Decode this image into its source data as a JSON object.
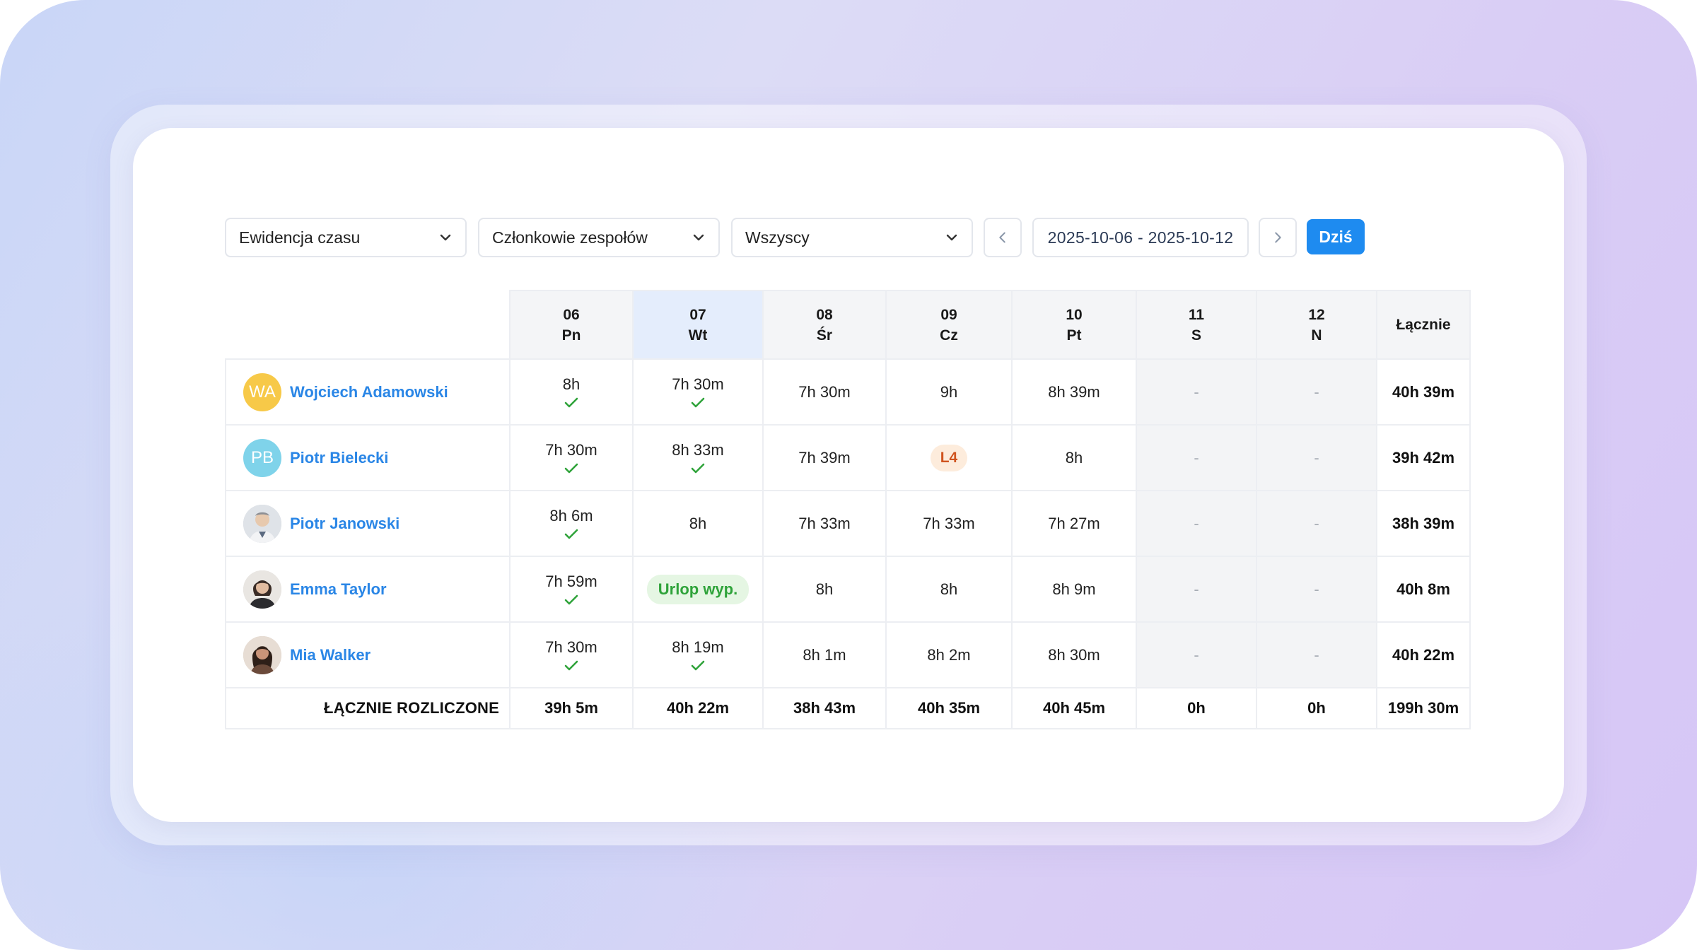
{
  "toolbar": {
    "view_select": "Ewidencja czasu",
    "members_select": "Członkowie zespołów",
    "filter_select": "Wszyscy",
    "date_range": "2025-10-06 - 2025-10-12",
    "today_label": "Dziś"
  },
  "columns": [
    {
      "day": "06",
      "dow": "Pn"
    },
    {
      "day": "07",
      "dow": "Wt"
    },
    {
      "day": "08",
      "dow": "Śr"
    },
    {
      "day": "09",
      "dow": "Cz"
    },
    {
      "day": "10",
      "dow": "Pt"
    },
    {
      "day": "11",
      "dow": "S"
    },
    {
      "day": "12",
      "dow": "N"
    }
  ],
  "total_header": "Łącznie",
  "rows": [
    {
      "initials": "WA",
      "name": "Wojciech Adamowski",
      "avatar_color": "#f7c948",
      "cells": [
        "8h",
        "7h 30m",
        "7h 30m",
        "9h",
        "8h 39m",
        "-",
        "-"
      ],
      "total": "40h 39m"
    },
    {
      "initials": "PB",
      "name": "Piotr Bielecki",
      "avatar_color": "#7fd3ea",
      "cells": [
        "7h 30m",
        "8h 33m",
        "7h 39m",
        "L4",
        "8h",
        "-",
        "-"
      ],
      "total": "39h 42m"
    },
    {
      "initials": "",
      "name": "Piotr Janowski",
      "avatar_color": "#c9ced6",
      "cells": [
        "8h 6m",
        "8h",
        "7h 33m",
        "7h 33m",
        "7h 27m",
        "-",
        "-"
      ],
      "total": "38h 39m"
    },
    {
      "initials": "",
      "name": "Emma Taylor",
      "avatar_color": "#d9d4cf",
      "cells": [
        "7h 59m",
        "Urlop wyp.",
        "8h",
        "8h",
        "8h 9m",
        "-",
        "-"
      ],
      "total": "40h 8m"
    },
    {
      "initials": "",
      "name": "Mia Walker",
      "avatar_color": "#d8c9bd",
      "cells": [
        "7h 30m",
        "8h 19m",
        "8h 1m",
        "8h 2m",
        "8h 30m",
        "-",
        "-"
      ],
      "total": "40h 22m"
    }
  ],
  "footer": {
    "label": "ŁĄCZNIE ROZLICZONE",
    "cells": [
      "39h 5m",
      "40h 22m",
      "38h 43m",
      "40h 35m",
      "40h 45m",
      "0h",
      "0h"
    ],
    "total": "199h 30m"
  },
  "colors": {
    "accent": "#1e8bf0",
    "name_link": "#2a86e6",
    "check": "#2fa33a",
    "l4_bg": "#fdecdc",
    "l4_text": "#d0541f",
    "urlop_bg": "#e5f6e3",
    "urlop_text": "#2fa33a"
  }
}
